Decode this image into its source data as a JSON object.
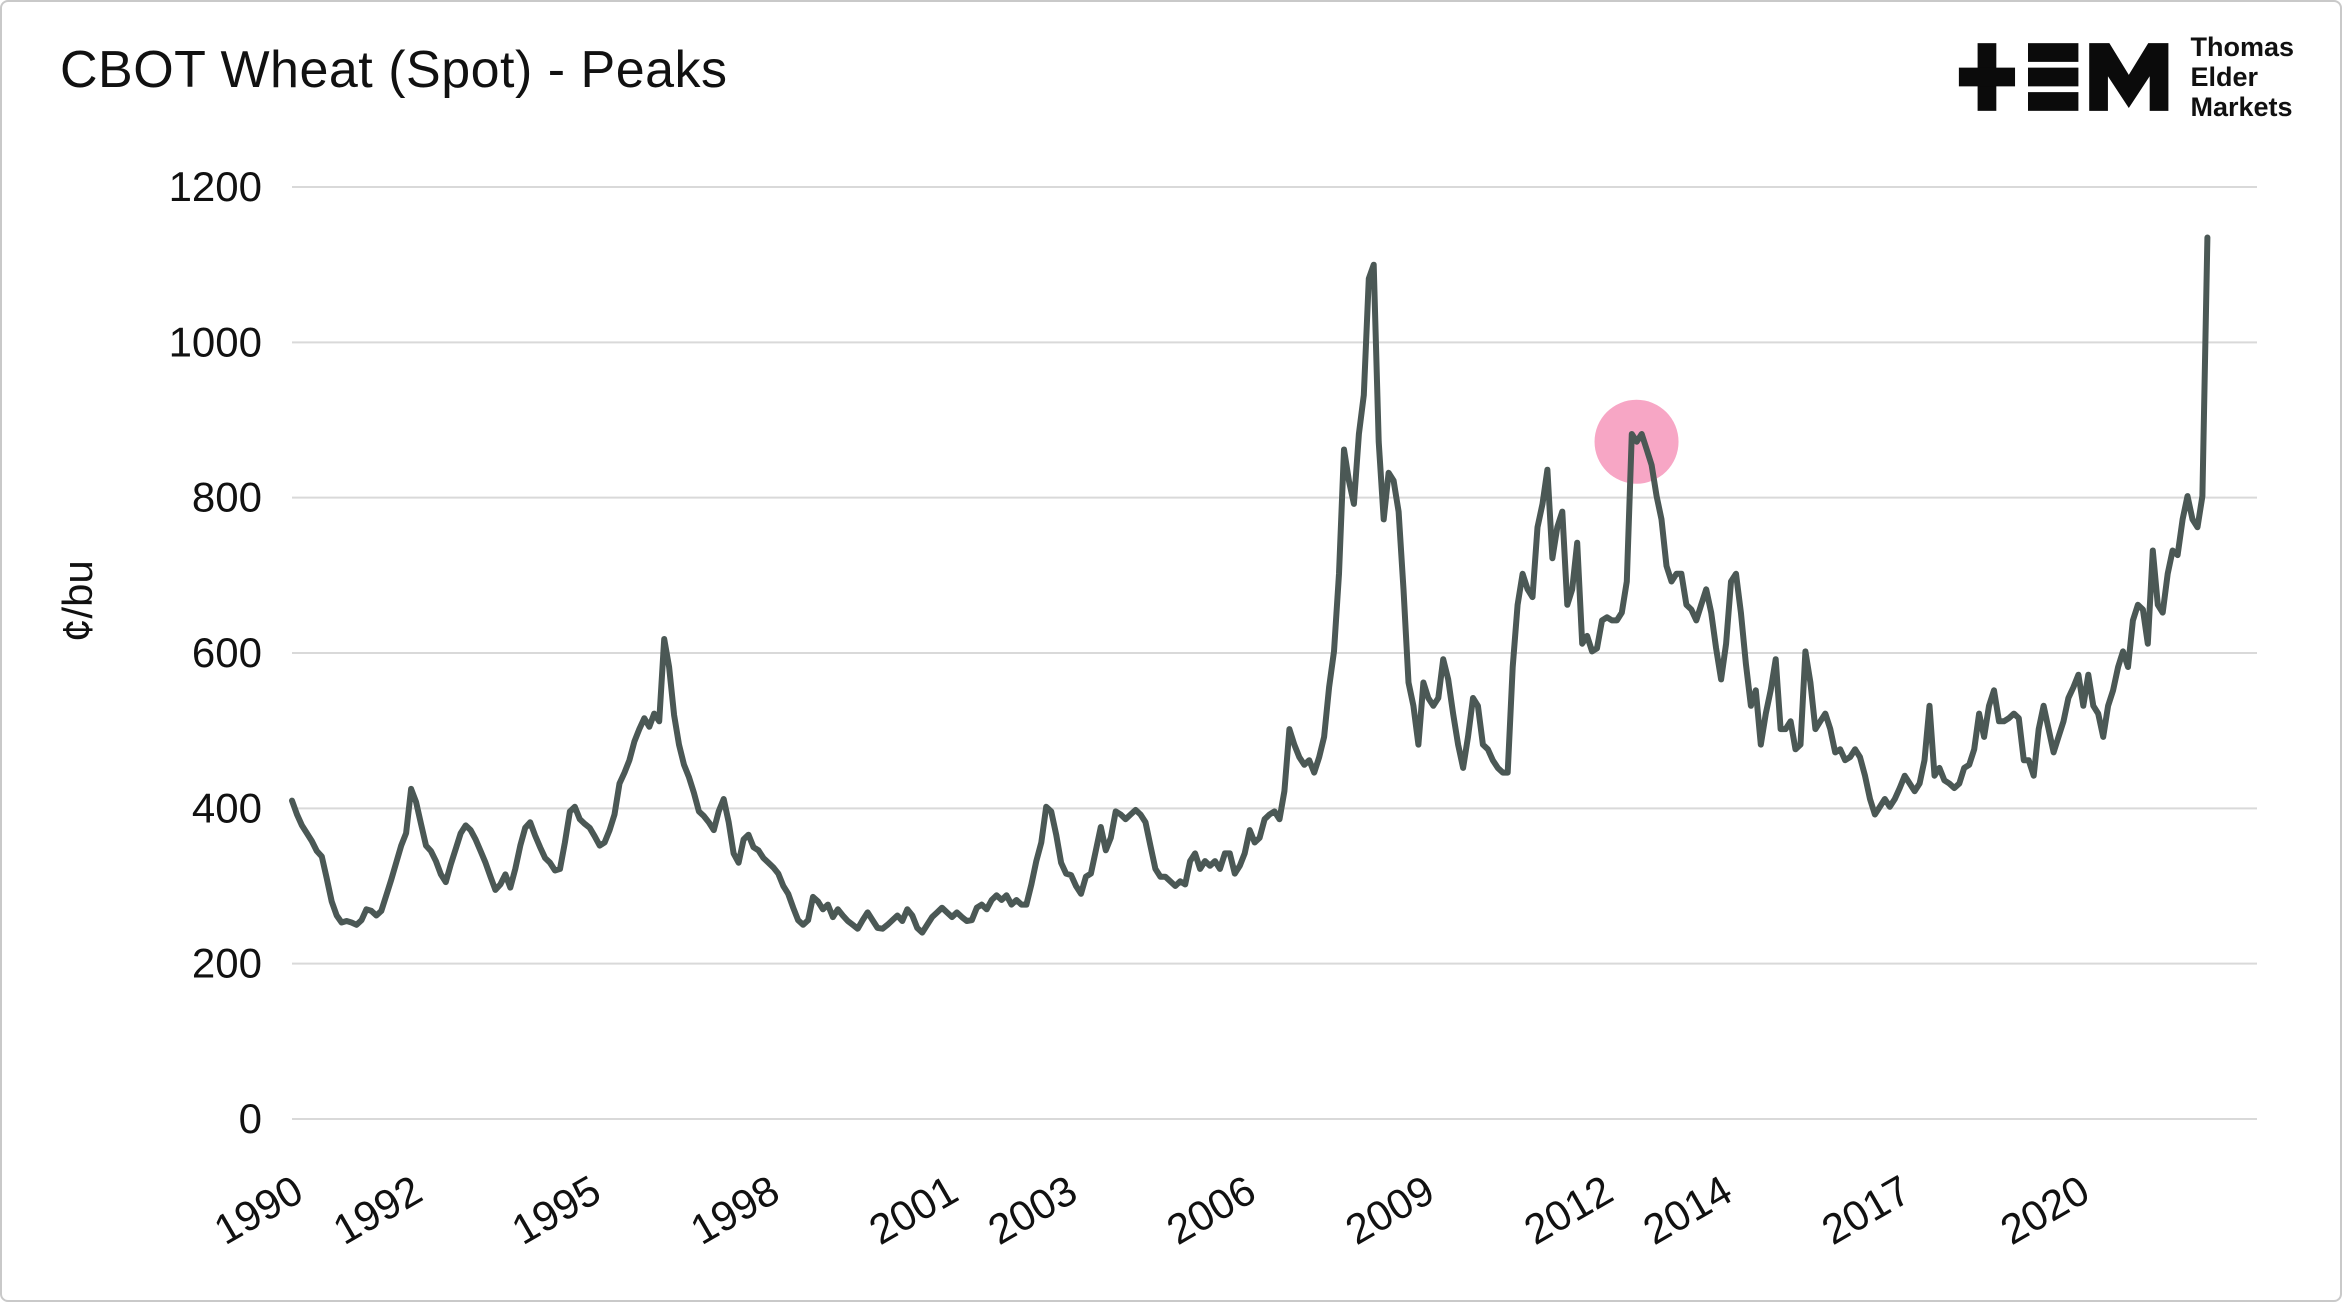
{
  "logo": {
    "lines": [
      "Thomas",
      "Elder",
      "Markets"
    ]
  },
  "chart_data": {
    "type": "line",
    "title": "CBOT Wheat (Spot) - Peaks",
    "xlabel": "",
    "ylabel": "¢/bu",
    "xlim": [
      1990,
      2023
    ],
    "ylim": [
      0,
      1200
    ],
    "y_ticks": [
      0,
      200,
      400,
      600,
      800,
      1000,
      1200
    ],
    "x_ticks": [
      1990,
      1992,
      1995,
      1998,
      2001,
      2003,
      2006,
      2009,
      2012,
      2014,
      2017,
      2020
    ],
    "grid": "horizontal",
    "legend": "none",
    "line_color": "#4b5855",
    "gridline_color": "#d9d9d9",
    "annotations": [
      {
        "shape": "circle",
        "x": 2012.58,
        "y": 872,
        "radius_px": 42,
        "color": "#f7a6c5"
      }
    ],
    "series": [
      {
        "name": "CBOT Wheat (Spot)",
        "color": "#4b5855",
        "start_year": 1990,
        "frequency": "monthly",
        "values": [
          410,
          392,
          378,
          368,
          358,
          345,
          338,
          310,
          280,
          262,
          253,
          255,
          253,
          250,
          256,
          270,
          268,
          262,
          268,
          288,
          308,
          330,
          352,
          368,
          425,
          408,
          380,
          352,
          345,
          332,
          315,
          305,
          328,
          348,
          368,
          378,
          372,
          360,
          345,
          330,
          312,
          295,
          302,
          315,
          298,
          322,
          352,
          375,
          382,
          365,
          350,
          336,
          330,
          320,
          322,
          356,
          396,
          402,
          386,
          380,
          375,
          364,
          352,
          356,
          372,
          392,
          432,
          446,
          462,
          486,
          502,
          516,
          505,
          522,
          512,
          618,
          582,
          520,
          482,
          456,
          440,
          420,
          396,
          390,
          382,
          372,
          396,
          412,
          382,
          342,
          330,
          360,
          366,
          350,
          346,
          336,
          330,
          324,
          316,
          300,
          290,
          272,
          256,
          250,
          256,
          286,
          280,
          270,
          276,
          260,
          270,
          262,
          255,
          250,
          245,
          256,
          266,
          256,
          246,
          245,
          250,
          256,
          262,
          255,
          270,
          262,
          246,
          240,
          250,
          260,
          266,
          272,
          266,
          260,
          266,
          260,
          255,
          256,
          272,
          276,
          270,
          282,
          288,
          282,
          288,
          276,
          282,
          276,
          276,
          302,
          332,
          356,
          402,
          396,
          366,
          330,
          316,
          314,
          300,
          290,
          312,
          316,
          346,
          376,
          346,
          362,
          396,
          392,
          386,
          392,
          398,
          392,
          382,
          352,
          322,
          312,
          312,
          306,
          300,
          306,
          302,
          332,
          342,
          322,
          332,
          326,
          332,
          322,
          342,
          342,
          316,
          326,
          342,
          372,
          356,
          362,
          386,
          392,
          396,
          386,
          422,
          502,
          482,
          466,
          456,
          462,
          446,
          466,
          492,
          556,
          602,
          702,
          862,
          822,
          792,
          882,
          932,
          1082,
          1100,
          872,
          772,
          832,
          822,
          782,
          682,
          562,
          532,
          482,
          562,
          542,
          532,
          542,
          592,
          566,
          522,
          482,
          452,
          492,
          542,
          532,
          482,
          476,
          462,
          452,
          446,
          446,
          582,
          662,
          702,
          682,
          672,
          762,
          792,
          836,
          722,
          762,
          782,
          662,
          682,
          742,
          612,
          622,
          602,
          606,
          642,
          646,
          642,
          642,
          652,
          692,
          882,
          872,
          882,
          862,
          842,
          802,
          772,
          712,
          692,
          702,
          702,
          662,
          656,
          642,
          662,
          682,
          652,
          606,
          566,
          612,
          692,
          702,
          652,
          586,
          532,
          552,
          482,
          522,
          552,
          592,
          502,
          502,
          512,
          476,
          482,
          602,
          562,
          502,
          512,
          522,
          502,
          472,
          476,
          462,
          466,
          476,
          466,
          442,
          412,
          392,
          402,
          412,
          402,
          412,
          426,
          442,
          432,
          422,
          432,
          462,
          532,
          442,
          452,
          436,
          432,
          426,
          432,
          452,
          456,
          476,
          522,
          492,
          532,
          552,
          512,
          512,
          516,
          522,
          516,
          462,
          462,
          442,
          502,
          532,
          502,
          472,
          492,
          512,
          542,
          556,
          572,
          532,
          572,
          532,
          522,
          492,
          532,
          552,
          582,
          602,
          582,
          642,
          662,
          656,
          612,
          732,
          662,
          652,
          702,
          732,
          726,
          772,
          802,
          772,
          762,
          802,
          1135
        ]
      }
    ]
  }
}
